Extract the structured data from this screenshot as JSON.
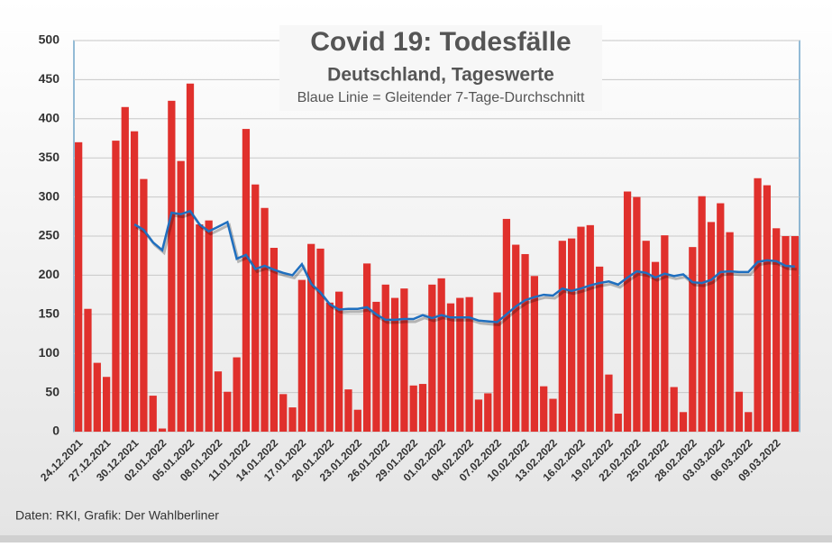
{
  "chart_data": {
    "type": "bar",
    "title": "Covid 19: Todesfälle",
    "subtitle": "Deutschland, Tageswerte",
    "note": "Blaue Linie = Gleitender 7-Tage-Durchschnitt",
    "source": "Daten: RKI, Grafik: Der Wahlberliner",
    "categories": [
      "24.12.2021",
      null,
      null,
      "27.12.2021",
      null,
      null,
      "30.12.2021",
      null,
      null,
      "02.01.2022",
      null,
      null,
      "05.01.2022",
      null,
      null,
      "08.01.2022",
      null,
      null,
      "11.01.2022",
      null,
      null,
      "14.01.2022",
      null,
      null,
      "17.01.2022",
      null,
      null,
      "20.01.2022",
      null,
      null,
      "23.01.2022",
      null,
      null,
      "26.01.2022",
      null,
      null,
      "29.01.2022",
      null,
      null,
      "01.02.2022",
      null,
      null,
      "04.02.2022",
      null,
      null,
      "07.02.2022",
      null,
      null,
      "10.02.2022",
      null,
      null,
      "13.02.2022",
      null,
      null,
      "16.02.2022",
      null,
      null,
      "19.02.2022",
      null,
      null,
      "22.02.2022",
      null,
      null,
      "25.02.2022",
      null,
      null,
      "28.02.2022",
      null,
      null,
      "03.03.2022",
      null,
      null,
      "06.03.2022",
      null,
      null,
      "09.03.2022",
      null,
      null
    ],
    "series": [
      {
        "type": "bar",
        "color": "#e0302c",
        "values": [
          370,
          157,
          88,
          70,
          372,
          415,
          384,
          323,
          46,
          4,
          423,
          346,
          445,
          265,
          270,
          77,
          51,
          95,
          387,
          316,
          286,
          235,
          48,
          31,
          194,
          240,
          234,
          165,
          179,
          54,
          28,
          215,
          166,
          188,
          171,
          183,
          59,
          61,
          188,
          196,
          164,
          171,
          172,
          41,
          49,
          178,
          272,
          239,
          227,
          199,
          58,
          42,
          244,
          247,
          262,
          264,
          211,
          73,
          23,
          307,
          300,
          244,
          217,
          251,
          57,
          25,
          236,
          301,
          268,
          292,
          255,
          51,
          25,
          324,
          315,
          260,
          250,
          250
        ]
      },
      {
        "type": "line",
        "color": "#1f6fbf",
        "values": [
          null,
          null,
          null,
          null,
          null,
          null,
          265,
          258,
          242,
          232,
          280,
          278,
          282,
          265,
          256,
          262,
          268,
          221,
          226,
          208,
          212,
          207,
          203,
          200,
          214,
          189,
          178,
          163,
          156,
          157,
          157,
          159,
          150,
          143,
          143,
          144,
          144,
          149,
          145,
          149,
          146,
          146,
          146,
          142,
          141,
          140,
          150,
          160,
          168,
          172,
          175,
          174,
          183,
          180,
          183,
          187,
          190,
          192,
          188,
          197,
          205,
          203,
          197,
          202,
          199,
          201,
          191,
          190,
          194,
          204,
          205,
          204,
          204,
          217,
          219,
          218,
          212,
          211
        ]
      }
    ],
    "ylim": [
      0,
      500
    ],
    "yticks": [
      0,
      50,
      100,
      150,
      200,
      250,
      300,
      350,
      400,
      450,
      500
    ],
    "grid": true
  }
}
